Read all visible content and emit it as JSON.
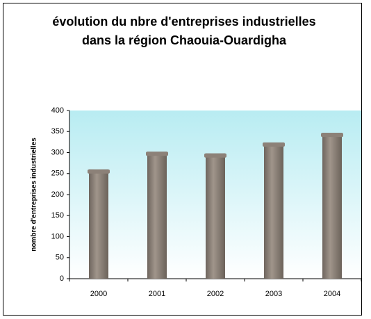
{
  "chart_data": {
    "type": "bar",
    "title": "évolution du nbre d'entreprises industrielles dans la région Chaouia-Ouardigha",
    "y_label": "nombre d'entreprises industrielles",
    "categories": [
      "2000",
      "2001",
      "2002",
      "2003",
      "2004"
    ],
    "values": [
      260,
      302,
      298,
      324,
      347
    ],
    "color": "#8c8178",
    "ylim": [
      0,
      400
    ],
    "yticks": [
      0,
      50,
      100,
      150,
      200,
      250,
      300,
      350,
      400
    ],
    "grid": false
  }
}
